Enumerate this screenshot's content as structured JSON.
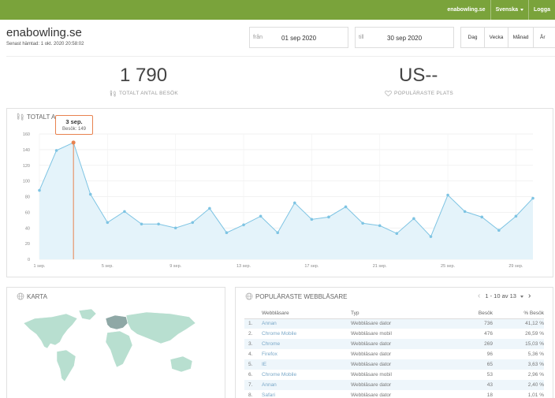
{
  "topnav": {
    "site": "enabowling.se",
    "language": "Svenska",
    "logout": "Logga"
  },
  "header": {
    "title": "enabowling.se",
    "last_fetched": "Senast hämtad: 1 okt. 2020 20:58:02"
  },
  "date_range": {
    "from_label": "från",
    "from_value": "01 sep 2020",
    "to_label": "till",
    "to_value": "30 sep 2020"
  },
  "period_buttons": [
    "Dag",
    "Vecka",
    "Månad",
    "År"
  ],
  "kpis": [
    {
      "value": "1 790",
      "label": "TOTALT ANTAL BESÖK"
    },
    {
      "value": "US--",
      "label": "POPULÄRASTE PLATS"
    }
  ],
  "visits_panel": {
    "title": "TOTALT A",
    "tooltip_date": "3 sep.",
    "tooltip_value": "Besök: 149"
  },
  "chart_data": {
    "type": "area",
    "x": [
      "1 sep.",
      "2 sep.",
      "3 sep.",
      "4 sep.",
      "5 sep.",
      "6 sep.",
      "7 sep.",
      "8 sep.",
      "9 sep.",
      "10 sep.",
      "11 sep.",
      "12 sep.",
      "13 sep.",
      "14 sep.",
      "15 sep.",
      "16 sep.",
      "17 sep.",
      "18 sep.",
      "19 sep.",
      "20 sep.",
      "21 sep.",
      "22 sep.",
      "23 sep.",
      "24 sep.",
      "25 sep.",
      "26 sep.",
      "27 sep.",
      "28 sep.",
      "29 sep.",
      "30 sep."
    ],
    "series": [
      {
        "values": [
          88,
          139,
          149,
          83,
          47,
          61,
          45,
          45,
          40,
          47,
          65,
          34,
          44,
          55,
          34,
          72,
          51,
          54,
          67,
          46,
          43,
          33,
          52,
          29,
          82,
          61,
          54,
          37,
          55,
          78
        ]
      }
    ],
    "tick_labels": [
      "1 sep.",
      "5 sep.",
      "9 sep.",
      "13 sep.",
      "17 sep.",
      "21 sep.",
      "25 sep.",
      "29 sep."
    ],
    "y_ticks": [
      "0",
      "20",
      "40",
      "60",
      "80",
      "100",
      "120",
      "140",
      "160"
    ],
    "ylim": [
      0,
      160
    ],
    "grid": true,
    "highlight_index": 2,
    "colors": {
      "line": "#7ec4e3",
      "fill": "#e4f3fa",
      "point": "#7ec4e3",
      "highlight": "#e8824f"
    }
  },
  "map_panel": {
    "title": "KARTA"
  },
  "browsers_panel": {
    "title": "POPULÄRASTE WEBBLÄSARE",
    "pager": "1 - 10 av 13",
    "columns": [
      "Webbläsare",
      "Typ",
      "Besök",
      "% Besök"
    ],
    "rows": [
      {
        "idx": "1.",
        "name": "Annan",
        "type": "Webbläsare dator",
        "visits": "736",
        "pct": "41,12 %"
      },
      {
        "idx": "2.",
        "name": "Chrome Mobile",
        "type": "Webbläsare mobil",
        "visits": "476",
        "pct": "26,59 %"
      },
      {
        "idx": "3.",
        "name": "Chrome",
        "type": "Webbläsare dator",
        "visits": "269",
        "pct": "15,03 %"
      },
      {
        "idx": "4.",
        "name": "Firefox",
        "type": "Webbläsare dator",
        "visits": "96",
        "pct": "5,36 %"
      },
      {
        "idx": "5.",
        "name": "IE",
        "type": "Webbläsare dator",
        "visits": "65",
        "pct": "3,63 %"
      },
      {
        "idx": "6.",
        "name": "Chrome Mobile",
        "type": "Webbläsare mobil",
        "visits": "53",
        "pct": "2,96 %"
      },
      {
        "idx": "7.",
        "name": "Annan",
        "type": "Webbläsare dator",
        "visits": "43",
        "pct": "2,40 %"
      },
      {
        "idx": "8.",
        "name": "Safari",
        "type": "Webbläsare dator",
        "visits": "18",
        "pct": "1,01 %"
      }
    ]
  },
  "colors": {
    "brand": "#7aa33b",
    "accent": "#e8824f",
    "map_land": "#b8dfd0",
    "map_highlight": "#8fa8a6"
  }
}
